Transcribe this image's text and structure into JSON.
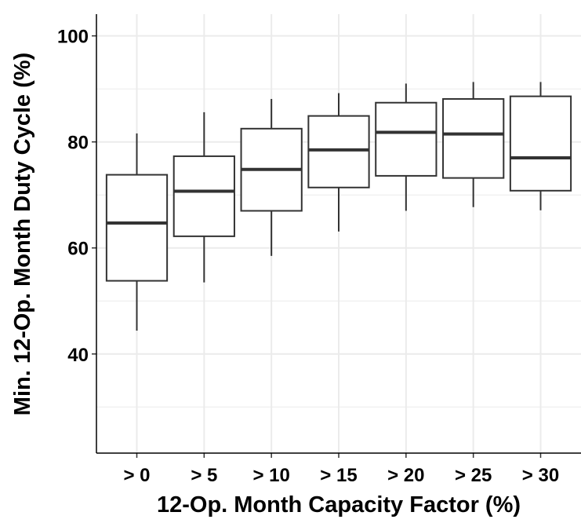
{
  "chart_data": {
    "type": "box",
    "x_label": "12-Op. Month Capacity Factor (%)",
    "y_label": "Min. 12-Op. Month Duty Cycle (%)",
    "categories": [
      "> 0",
      "> 5",
      "> 10",
      "> 15",
      "> 20",
      "> 25",
      "> 30"
    ],
    "boxes": [
      {
        "whislo": 44.4,
        "q1": 53.8,
        "med": 64.7,
        "q3": 73.8,
        "whishi": 81.6
      },
      {
        "whislo": 53.5,
        "q1": 62.2,
        "med": 70.7,
        "q3": 77.3,
        "whishi": 85.6
      },
      {
        "whislo": 58.5,
        "q1": 67.0,
        "med": 74.8,
        "q3": 82.5,
        "whishi": 88.1
      },
      {
        "whislo": 63.1,
        "q1": 71.4,
        "med": 78.5,
        "q3": 84.9,
        "whishi": 89.2
      },
      {
        "whislo": 67.0,
        "q1": 73.6,
        "med": 81.8,
        "q3": 87.4,
        "whishi": 91.0
      },
      {
        "whislo": 67.7,
        "q1": 73.2,
        "med": 81.5,
        "q3": 88.1,
        "whishi": 91.3
      },
      {
        "whislo": 67.1,
        "q1": 70.8,
        "med": 77.0,
        "q3": 88.6,
        "whishi": 91.3
      }
    ],
    "box_fill": "#ffffff",
    "box_stroke": "#333333",
    "ylim": [
      21.3,
      104.1
    ],
    "yticks": [
      40,
      60,
      80,
      100
    ],
    "minor_yticks": [
      30,
      50,
      70,
      90
    ],
    "grid": true
  }
}
